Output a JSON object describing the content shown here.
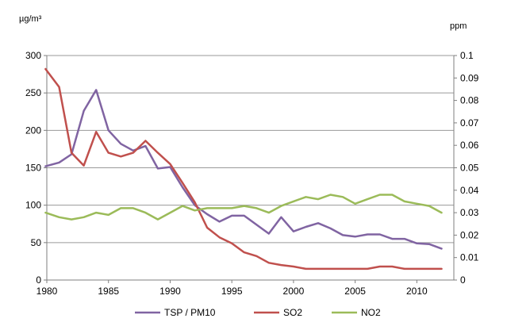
{
  "chart_data": {
    "type": "line",
    "title": "",
    "xlabel": "",
    "y_left_label": "µg/m³",
    "y_right_label": "ppm",
    "x_ticks": [
      1980,
      1985,
      1990,
      1995,
      2000,
      2005,
      2010
    ],
    "xlim": [
      1980,
      2013
    ],
    "y_left_ticks": [
      0,
      50,
      100,
      150,
      200,
      250,
      300
    ],
    "y_left_lim": [
      0,
      300
    ],
    "y_right_ticks": [
      "0",
      "0.01",
      "0.02",
      "0.03",
      "0.04",
      "0.05",
      "0.06",
      "0.07",
      "0.08",
      "0.09",
      "0.1"
    ],
    "y_right_lim": [
      0,
      0.1
    ],
    "grid": "horizontal",
    "legend_position": "bottom",
    "series": [
      {
        "name": "TSP / PM10",
        "color": "#8064a2",
        "axis": "left",
        "x": [
          1979.9,
          1981,
          1982,
          1983,
          1984,
          1985,
          1986,
          1987,
          1988,
          1989,
          1990,
          1991,
          1992,
          1993,
          1994,
          1995,
          1996,
          1997,
          1998,
          1999,
          2000,
          2001,
          2002,
          2003,
          2004,
          2005,
          2006,
          2007,
          2008,
          2009,
          2010,
          2011,
          2012
        ],
        "values": [
          152,
          157,
          168,
          226,
          254,
          200,
          182,
          173,
          179,
          149,
          151,
          124,
          100,
          88,
          78,
          86,
          86,
          74,
          62,
          84,
          65,
          71,
          76,
          69,
          60,
          58,
          61,
          61,
          55,
          55,
          49,
          48,
          42
        ]
      },
      {
        "name": "SO2",
        "color": "#c0504d",
        "axis": "left",
        "x": [
          1979.9,
          1981,
          1982,
          1983,
          1984,
          1985,
          1986,
          1987,
          1988,
          1989,
          1990,
          1991,
          1992,
          1993,
          1994,
          1995,
          1996,
          1997,
          1998,
          1999,
          2000,
          2001,
          2002,
          2003,
          2004,
          2005,
          2006,
          2007,
          2008,
          2009,
          2010,
          2011,
          2012
        ],
        "values": [
          282,
          258,
          170,
          153,
          198,
          170,
          165,
          170,
          186,
          170,
          155,
          130,
          104,
          70,
          57,
          49,
          37,
          32,
          23,
          20,
          18,
          15,
          15,
          15,
          15,
          15,
          15,
          18,
          18,
          15,
          15,
          15,
          15
        ]
      },
      {
        "name": "NO2",
        "color": "#9bbb59",
        "axis": "right",
        "x": [
          1979.9,
          1981,
          1982,
          1983,
          1984,
          1985,
          1986,
          1987,
          1988,
          1989,
          1990,
          1991,
          1992,
          1993,
          1994,
          1995,
          1996,
          1997,
          1998,
          1999,
          2000,
          2001,
          2002,
          2003,
          2004,
          2005,
          2006,
          2007,
          2008,
          2009,
          2010,
          2011,
          2012
        ],
        "values": [
          0.03,
          0.028,
          0.027,
          0.028,
          0.03,
          0.029,
          0.032,
          0.032,
          0.03,
          0.027,
          0.03,
          0.033,
          0.031,
          0.032,
          0.032,
          0.032,
          0.033,
          0.032,
          0.03,
          0.033,
          0.035,
          0.037,
          0.036,
          0.038,
          0.037,
          0.034,
          0.036,
          0.038,
          0.038,
          0.035,
          0.034,
          0.033,
          0.03
        ]
      }
    ]
  }
}
